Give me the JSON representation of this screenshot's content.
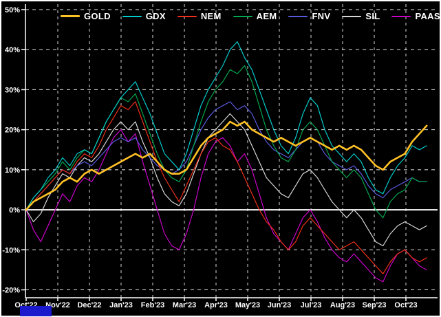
{
  "chart": {
    "background_color": "#000000",
    "frame_color": "#ffffff",
    "grid_style": "dashed",
    "zero_line": {
      "value": 0,
      "color": "#ffffff",
      "style": "solid"
    },
    "legend_position": "top-center",
    "watermark_color": "#1a1acc"
  },
  "chart_data": {
    "type": "line",
    "title": "",
    "xlabel": "",
    "ylabel": "",
    "x_description": "weekly index 0-55 spanning Oct 2022 through late Oct 2023",
    "categories_x": [
      "Oct'22",
      "Nov'22",
      "Dec'22",
      "Jan'23",
      "Feb'23",
      "Mar'23",
      "Apr'23",
      "May'23",
      "Jun'23",
      "Jul'23",
      "Aug'23",
      "Sep'23",
      "Oct'23"
    ],
    "ylim": [
      -20,
      50
    ],
    "yticks": [
      {
        "value": 50,
        "label": "50%"
      },
      {
        "value": 40,
        "label": "40%"
      },
      {
        "value": 30,
        "label": "30%"
      },
      {
        "value": 20,
        "label": "20%"
      },
      {
        "value": 10,
        "label": "10%"
      },
      {
        "value": 0,
        "label": "0%"
      },
      {
        "value": -10,
        "label": "-10%"
      },
      {
        "value": -20,
        "label": "-20%"
      }
    ],
    "grid": true,
    "legend": [
      "GOLD",
      "GDX",
      "NEM",
      "AEM",
      "FNV",
      "SIL",
      "PAAS"
    ],
    "series": [
      {
        "name": "GOLD",
        "color": "#ffc125",
        "stroke_width": 2.6,
        "values": [
          0,
          2,
          3,
          4,
          5,
          7,
          8,
          7,
          9,
          10,
          9,
          10,
          11,
          12,
          13,
          14,
          13,
          14,
          12,
          10,
          9,
          9,
          10,
          13,
          16,
          18,
          19,
          20,
          22,
          21,
          22,
          20,
          19,
          18,
          17,
          18,
          17,
          16,
          17,
          18,
          17,
          16,
          15,
          16,
          15,
          16,
          15,
          13,
          11,
          10,
          12,
          13,
          14,
          17,
          19,
          21
        ]
      },
      {
        "name": "GDX",
        "color": "#00cccc",
        "stroke_width": 1.2,
        "values": [
          0,
          3,
          5,
          8,
          10,
          13,
          11,
          14,
          15,
          14,
          18,
          22,
          25,
          28,
          30,
          32,
          28,
          24,
          19,
          14,
          12,
          10,
          14,
          20,
          26,
          30,
          33,
          36,
          40,
          42,
          38,
          35,
          30,
          25,
          20,
          16,
          14,
          18,
          24,
          28,
          26,
          20,
          16,
          14,
          12,
          14,
          12,
          8,
          5,
          4,
          8,
          11,
          13,
          16,
          15,
          16
        ]
      },
      {
        "name": "NEM",
        "color": "#f03018",
        "stroke_width": 1.2,
        "values": [
          0,
          2,
          4,
          6,
          8,
          10,
          9,
          12,
          14,
          13,
          16,
          20,
          23,
          26,
          25,
          27,
          22,
          17,
          12,
          8,
          5,
          2,
          6,
          10,
          14,
          17,
          18,
          16,
          15,
          12,
          8,
          4,
          0,
          -3,
          -5,
          -8,
          -10,
          -8,
          -4,
          -2,
          -4,
          -6,
          -8,
          -10,
          -9,
          -8,
          -10,
          -12,
          -14,
          -16,
          -13,
          -11,
          -10,
          -12,
          -13,
          -12
        ]
      },
      {
        "name": "AEM",
        "color": "#00a84f",
        "stroke_width": 1.2,
        "values": [
          0,
          3,
          5,
          7,
          9,
          12,
          10,
          13,
          15,
          14,
          18,
          22,
          25,
          28,
          27,
          29,
          24,
          19,
          14,
          10,
          8,
          7,
          10,
          16,
          22,
          27,
          30,
          32,
          35,
          34,
          36,
          32,
          26,
          20,
          16,
          13,
          12,
          15,
          20,
          22,
          20,
          16,
          12,
          10,
          8,
          10,
          8,
          4,
          0,
          -2,
          2,
          4,
          5,
          8,
          7,
          7
        ]
      },
      {
        "name": "FNV",
        "color": "#5a5ae0",
        "stroke_width": 1.2,
        "values": [
          0,
          2,
          4,
          6,
          8,
          10,
          9,
          11,
          12,
          11,
          13,
          15,
          17,
          18,
          17,
          18,
          15,
          13,
          11,
          10,
          9,
          10,
          12,
          16,
          20,
          23,
          25,
          26,
          27,
          25,
          26,
          24,
          20,
          17,
          15,
          14,
          13,
          15,
          17,
          18,
          17,
          14,
          12,
          11,
          10,
          11,
          9,
          6,
          4,
          3,
          5,
          6,
          7,
          8,
          7,
          7
        ]
      },
      {
        "name": "SIL",
        "color": "#d8d8d8",
        "stroke_width": 1.2,
        "values": [
          0,
          -3,
          -1,
          3,
          6,
          9,
          8,
          11,
          13,
          12,
          14,
          17,
          20,
          22,
          20,
          22,
          17,
          13,
          8,
          4,
          2,
          1,
          4,
          9,
          14,
          18,
          20,
          22,
          24,
          22,
          20,
          16,
          12,
          8,
          6,
          4,
          3,
          6,
          9,
          10,
          8,
          5,
          2,
          0,
          -2,
          0,
          -2,
          -5,
          -8,
          -9,
          -6,
          -4,
          -3,
          -4,
          -5,
          -4
        ]
      },
      {
        "name": "PAAS",
        "color": "#cc00cc",
        "stroke_width": 1.2,
        "values": [
          0,
          -5,
          -8,
          -4,
          0,
          4,
          2,
          6,
          8,
          7,
          10,
          14,
          18,
          20,
          17,
          19,
          12,
          6,
          0,
          -6,
          -9,
          -10,
          -6,
          0,
          8,
          14,
          17,
          18,
          16,
          12,
          14,
          10,
          4,
          -2,
          -6,
          -8,
          -10,
          -6,
          -2,
          0,
          -3,
          -7,
          -10,
          -12,
          -13,
          -11,
          -13,
          -15,
          -17,
          -18,
          -14,
          -11,
          -10,
          -12,
          -14,
          -15
        ]
      }
    ]
  }
}
